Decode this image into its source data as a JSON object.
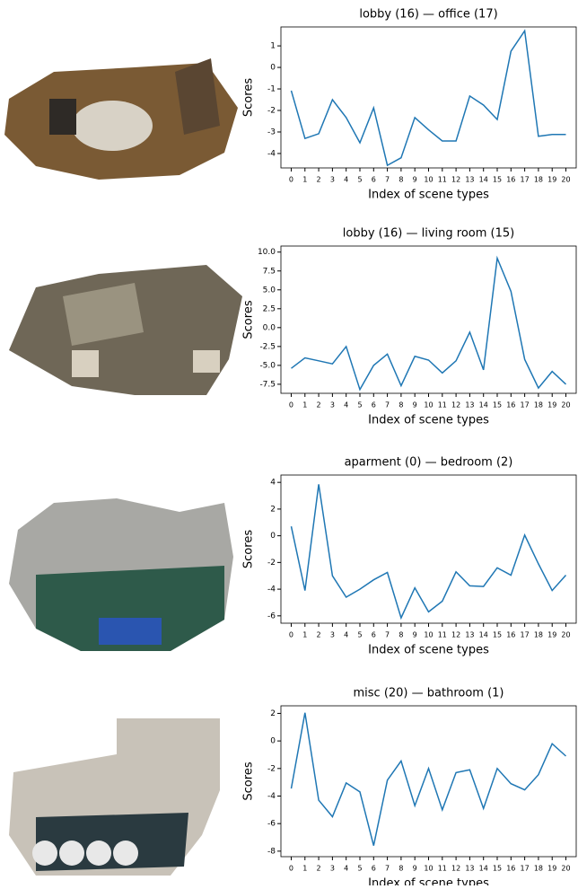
{
  "chart_data": [
    {
      "type": "line",
      "title": "lobby (16) — office (17)",
      "xlabel": "Index of scene types",
      "ylabel": "Scores",
      "color": "#1f77b4",
      "x": [
        0,
        1,
        2,
        3,
        4,
        5,
        6,
        7,
        8,
        9,
        10,
        11,
        12,
        13,
        14,
        15,
        16,
        17,
        18,
        19,
        20
      ],
      "values": [
        -1.08,
        -3.3,
        -3.08,
        -1.5,
        -2.33,
        -3.5,
        -1.88,
        -4.55,
        -4.2,
        -2.33,
        -2.9,
        -3.42,
        -3.42,
        -1.33,
        -1.75,
        -2.42,
        0.75,
        1.7,
        -3.2,
        -3.12,
        -3.12
      ],
      "xlim": [
        -0.75,
        20.75
      ],
      "ylim": [
        -4.67,
        1.88
      ],
      "xticks": [
        0,
        1,
        2,
        3,
        4,
        5,
        6,
        7,
        8,
        9,
        10,
        11,
        12,
        13,
        14,
        15,
        16,
        17,
        18,
        19,
        20
      ],
      "yticks": [
        -4,
        -3,
        -2,
        -1,
        0,
        1
      ]
    },
    {
      "type": "line",
      "title": "lobby (16) — living room (15)",
      "xlabel": "Index of scene types",
      "ylabel": "Scores",
      "color": "#1f77b4",
      "x": [
        0,
        1,
        2,
        3,
        4,
        5,
        6,
        7,
        8,
        9,
        10,
        11,
        12,
        13,
        14,
        15,
        16,
        17,
        18,
        19,
        20
      ],
      "values": [
        -5.4,
        -4.0,
        -4.4,
        -4.8,
        -2.5,
        -8.2,
        -5.0,
        -3.5,
        -7.7,
        -3.8,
        -4.3,
        -6.0,
        -4.4,
        -0.6,
        -5.6,
        9.2,
        4.8,
        -4.2,
        -8.0,
        -5.8,
        -7.5
      ],
      "xlim": [
        -0.75,
        20.75
      ],
      "ylim": [
        -8.7,
        10.8
      ],
      "xticks": [
        0,
        1,
        2,
        3,
        4,
        5,
        6,
        7,
        8,
        9,
        10,
        11,
        12,
        13,
        14,
        15,
        16,
        17,
        18,
        19,
        20
      ],
      "yticks": [
        -7.5,
        {
          "value": -5,
          "label": "-5.0"
        },
        -2.5,
        {
          "value": 0,
          "label": "0.0"
        },
        2.5,
        {
          "value": 5,
          "label": "5.0"
        },
        7.5,
        {
          "value": 10,
          "label": "10.0"
        }
      ]
    },
    {
      "type": "line",
      "title": "aparment (0) — bedroom (2)",
      "xlabel": "Index of scene types",
      "ylabel": "Scores",
      "color": "#1f77b4",
      "x": [
        0,
        1,
        2,
        3,
        4,
        5,
        6,
        7,
        8,
        9,
        10,
        11,
        12,
        13,
        14,
        15,
        16,
        17,
        18,
        19,
        20
      ],
      "values": [
        0.7,
        -4.1,
        3.85,
        -3.0,
        -4.6,
        -4.0,
        -3.3,
        -2.75,
        -6.15,
        -3.9,
        -5.7,
        -4.9,
        -2.7,
        -3.75,
        -3.8,
        -2.4,
        -2.95,
        0.05,
        -2.1,
        -4.1,
        -2.95
      ],
      "xlim": [
        -0.75,
        20.75
      ],
      "ylim": [
        -6.55,
        4.55
      ],
      "xticks": [
        0,
        1,
        2,
        3,
        4,
        5,
        6,
        7,
        8,
        9,
        10,
        11,
        12,
        13,
        14,
        15,
        16,
        17,
        18,
        19,
        20
      ],
      "yticks": [
        -6,
        -4,
        -2,
        0,
        2,
        4
      ]
    },
    {
      "type": "line",
      "title": "misc (20) — bathroom (1)",
      "xlabel": "Index of scene types",
      "ylabel": "Scores",
      "color": "#1f77b4",
      "x": [
        0,
        1,
        2,
        3,
        4,
        5,
        6,
        7,
        8,
        9,
        10,
        11,
        12,
        13,
        14,
        15,
        16,
        17,
        18,
        19,
        20
      ],
      "values": [
        -3.45,
        2.05,
        -4.3,
        -5.5,
        -3.05,
        -3.7,
        -7.6,
        -2.85,
        -1.45,
        -4.7,
        -2.0,
        -5.0,
        -2.3,
        -2.1,
        -4.9,
        -2.0,
        -3.1,
        -3.55,
        -2.45,
        -0.2,
        -1.1
      ],
      "xlim": [
        -0.75,
        20.75
      ],
      "ylim": [
        -8.4,
        2.55
      ],
      "xticks": [
        0,
        1,
        2,
        3,
        4,
        5,
        6,
        7,
        8,
        9,
        10,
        11,
        12,
        13,
        14,
        15,
        16,
        17,
        18,
        19,
        20
      ],
      "yticks": [
        -8,
        -6,
        -4,
        -2,
        0,
        2
      ]
    }
  ]
}
